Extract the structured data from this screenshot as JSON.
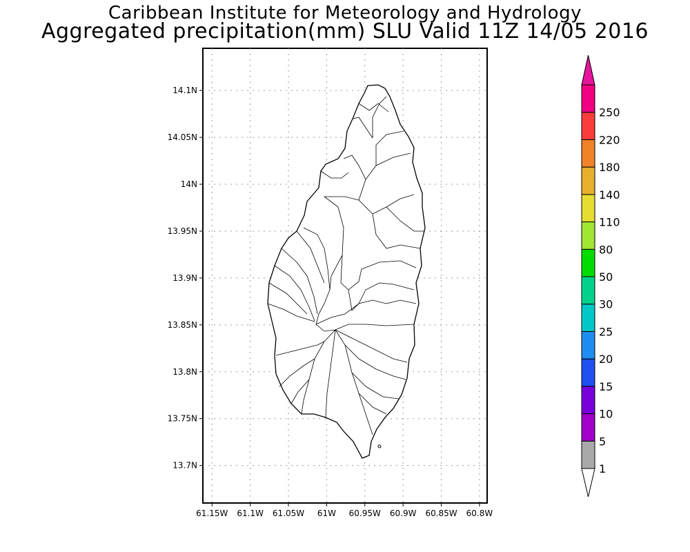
{
  "header": {
    "institute": "Caribbean Institute for Meteorology and Hydrology",
    "product": "Aggregated precipitation(mm) SLU Valid 11Z 14/05 2016"
  },
  "map": {
    "lat_ticks": [
      "14.1N",
      "14.05N",
      "14N",
      "13.95N",
      "13.9N",
      "13.85N",
      "13.8N",
      "13.75N",
      "13.7N"
    ],
    "lon_ticks": [
      "61.15W",
      "61.1W",
      "61.05W",
      "61W",
      "60.95W",
      "60.9W",
      "60.85W",
      "60.8W"
    ],
    "lat_range": [
      13.66,
      14.145
    ],
    "lon_range": [
      -61.162,
      -60.79
    ],
    "grid": true
  },
  "colorbar": {
    "levels": [
      "1",
      "5",
      "10",
      "15",
      "20",
      "25",
      "30",
      "50",
      "80",
      "110",
      "140",
      "180",
      "220",
      "250"
    ],
    "colors": [
      "#a9a9a9",
      "#a000c8",
      "#7800dc",
      "#2050f0",
      "#1e8cf0",
      "#00c8c8",
      "#00d28c",
      "#00dc00",
      "#a0e632",
      "#e6dc32",
      "#e6af2d",
      "#f08228",
      "#fa3c3c",
      "#f00082"
    ]
  }
}
